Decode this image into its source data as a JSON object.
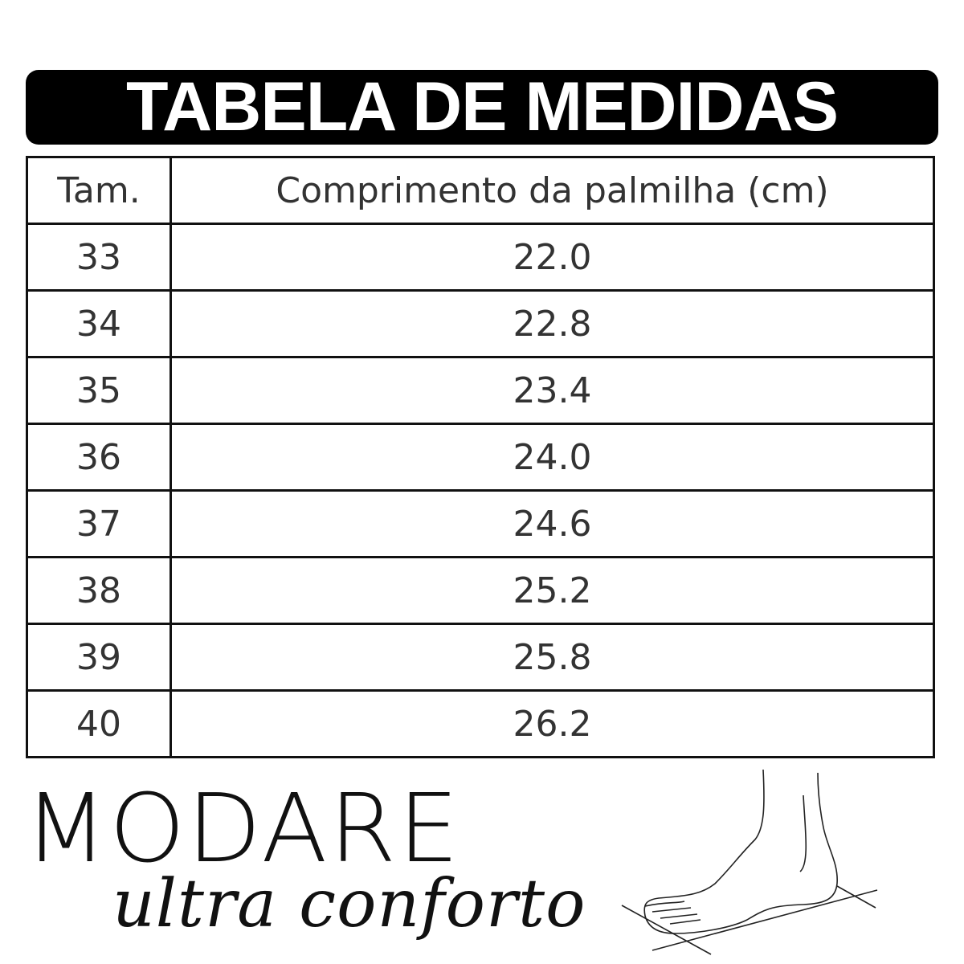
{
  "title": "TABELA DE MEDIDAS",
  "table": {
    "headers": [
      "Tam.",
      "Comprimento da palmilha (cm)"
    ],
    "rows": [
      [
        "33",
        "22.0"
      ],
      [
        "34",
        "22.8"
      ],
      [
        "35",
        "23.4"
      ],
      [
        "36",
        "24.0"
      ],
      [
        "37",
        "24.6"
      ],
      [
        "38",
        "25.2"
      ],
      [
        "39",
        "25.8"
      ],
      [
        "40",
        "26.2"
      ]
    ]
  },
  "brand": {
    "name": "MODARE",
    "tagline": "ultra conforto"
  },
  "illustration": "foot-measurement-icon"
}
